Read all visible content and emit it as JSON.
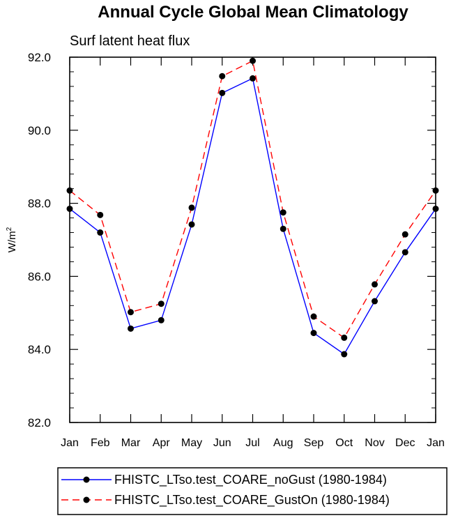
{
  "chart_data": {
    "type": "line",
    "title": "Annual Cycle Global Mean Climatology",
    "subtitle": "Surf latent heat flux",
    "xlabel": "",
    "ylabel": "W/m",
    "ylabel_superscript": "2",
    "categories": [
      "Jan",
      "Feb",
      "Mar",
      "Apr",
      "May",
      "Jun",
      "Jul",
      "Aug",
      "Sep",
      "Oct",
      "Nov",
      "Dec",
      "Jan"
    ],
    "ylim": [
      82.0,
      92.0
    ],
    "yticks": [
      "82.0",
      "84.0",
      "86.0",
      "88.0",
      "90.0",
      "92.0"
    ],
    "grid": false,
    "legend_position": "bottom",
    "series": [
      {
        "name": "FHISTC_LTso.test_COARE_noGust (1980-1984)",
        "color": "#0000ff",
        "line_style": "solid",
        "marker": "filled-circle",
        "values": [
          87.85,
          87.2,
          84.57,
          84.8,
          87.42,
          91.02,
          91.42,
          87.3,
          84.45,
          83.87,
          85.32,
          86.66,
          87.85
        ]
      },
      {
        "name": "FHISTC_LTso.test_COARE_GustOn (1980-1984)",
        "color": "#ff0000",
        "line_style": "dashed",
        "marker": "filled-circle",
        "values": [
          88.35,
          87.68,
          85.02,
          85.25,
          87.88,
          91.48,
          91.9,
          87.75,
          84.9,
          84.32,
          85.78,
          87.15,
          88.35
        ]
      }
    ]
  }
}
